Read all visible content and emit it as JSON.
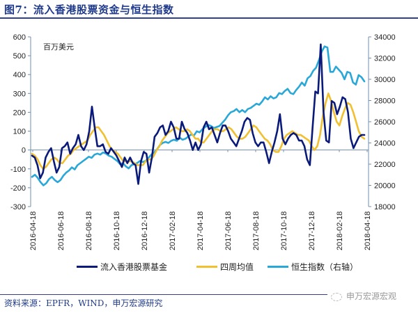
{
  "figure": {
    "title": "图7：流入香港股票资金与恒生指数",
    "source": "资料来源：EPFR，WIND，申万宏源研究",
    "watermark": "申万宏源宏观"
  },
  "chart_data": {
    "type": "line",
    "title": "图7：流入香港股票资金与恒生指数",
    "ylabel": "百万美元",
    "y_left": {
      "min": -300,
      "max": 600,
      "ticks": [
        -300,
        -200,
        -100,
        0,
        100,
        200,
        300,
        400,
        500,
        600
      ]
    },
    "y_right": {
      "min": 18000,
      "max": 34000,
      "ticks": [
        18000,
        20000,
        22000,
        24000,
        26000,
        28000,
        30000,
        32000,
        34000
      ]
    },
    "x_ticks": [
      "2016-04-18",
      "2016-06-18",
      "2016-08-18",
      "2016-10-18",
      "2016-12-18",
      "2017-02-18",
      "2017-04-18",
      "2017-06-18",
      "2017-08-18",
      "2017-10-18",
      "2017-12-18",
      "2018-02-18",
      "2018-04-18"
    ],
    "x_range": [
      "2016-04-11",
      "2018-04-18"
    ],
    "grid": false,
    "legend_position": "bottom",
    "colors": {
      "flow": "#0a1a7a",
      "ma4": "#f0c030",
      "hsi": "#29a8d8",
      "axis": "#6f8fb0"
    },
    "series": [
      {
        "name": "流入香港股票基金",
        "axis": "left",
        "values": [
          -30,
          -40,
          -80,
          -150,
          -120,
          -40,
          -10,
          10,
          -60,
          -120,
          -90,
          10,
          20,
          40,
          -20,
          10,
          30,
          80,
          20,
          0,
          30,
          100,
          230,
          120,
          20,
          20,
          30,
          -10,
          -20,
          10,
          -10,
          -30,
          -60,
          -90,
          -40,
          -70,
          -40,
          -70,
          -80,
          -180,
          -60,
          -10,
          -20,
          -120,
          -40,
          70,
          90,
          120,
          130,
          80,
          100,
          150,
          120,
          60,
          60,
          150,
          110,
          90,
          50,
          0,
          40,
          0,
          30,
          120,
          150,
          110,
          120,
          80,
          40,
          90,
          130,
          130,
          100,
          60,
          40,
          20,
          60,
          100,
          150,
          170,
          160,
          90,
          40,
          20,
          40,
          40,
          -10,
          -70,
          -10,
          40,
          100,
          190,
          60,
          30,
          60,
          80,
          90,
          80,
          50,
          50,
          20,
          -50,
          -80,
          120,
          310,
          300,
          560,
          200,
          50,
          40,
          260,
          250,
          190,
          230,
          280,
          270,
          200,
          60,
          10,
          40,
          70,
          80,
          80
        ]
      },
      {
        "name": "四周均值",
        "axis": "left",
        "values": [
          -20,
          -30,
          -50,
          -80,
          -100,
          -90,
          -70,
          -50,
          -40,
          -50,
          -70,
          -70,
          -50,
          -30,
          -20,
          0,
          10,
          20,
          30,
          40,
          50,
          80,
          100,
          120,
          120,
          100,
          80,
          50,
          20,
          0,
          -10,
          -20,
          -40,
          -60,
          -60,
          -60,
          -60,
          -70,
          -80,
          -80,
          -80,
          -60,
          -50,
          -50,
          -30,
          0,
          20,
          50,
          70,
          90,
          100,
          110,
          120,
          110,
          100,
          100,
          110,
          100,
          80,
          60,
          60,
          40,
          40,
          60,
          80,
          100,
          110,
          110,
          100,
          100,
          110,
          120,
          110,
          90,
          70,
          60,
          60,
          70,
          90,
          110,
          130,
          120,
          100,
          80,
          60,
          50,
          30,
          0,
          -10,
          -10,
          20,
          60,
          80,
          90,
          100,
          90,
          80,
          80,
          70,
          60,
          50,
          20,
          0,
          20,
          80,
          180,
          250,
          300,
          260,
          200,
          150,
          130,
          180,
          220,
          250,
          240,
          200,
          150,
          100,
          70,
          60
        ]
      },
      {
        "name": "恒生指数（右轴）",
        "axis": "right",
        "values": [
          20800,
          21000,
          20700,
          20300,
          20000,
          20200,
          20600,
          20800,
          20500,
          20300,
          20500,
          20900,
          21200,
          21400,
          21700,
          21500,
          21900,
          22100,
          22300,
          22500,
          22700,
          22600,
          22900,
          23000,
          22900,
          23100,
          23000,
          22800,
          22700,
          22500,
          22300,
          22000,
          22100,
          21800,
          21600,
          21900,
          22000,
          22100,
          22300,
          22200,
          22300,
          22600,
          22900,
          23100,
          23400,
          23800,
          24000,
          24100,
          24000,
          24200,
          24300,
          24200,
          24500,
          24300,
          24400,
          24600,
          24800,
          24700,
          25100,
          25000,
          25300,
          25500,
          25700,
          25600,
          25400,
          25500,
          25600,
          25900,
          26200,
          26600,
          26900,
          27000,
          27200,
          26900,
          27100,
          26900,
          27200,
          27300,
          27500,
          27700,
          27600,
          27900,
          28300,
          28100,
          28400,
          28200,
          28300,
          28700,
          28600,
          28900,
          29100,
          28700,
          28600,
          29000,
          29300,
          29700,
          29400,
          30100,
          30300,
          30800,
          31100,
          31800,
          32600,
          33100,
          33000,
          30700,
          30700,
          31200,
          30900,
          30600,
          30000,
          30700,
          30600,
          29700,
          29500,
          30400,
          30200,
          29800
        ]
      }
    ]
  },
  "axis_labels": {
    "left": [
      "600",
      "500",
      "400",
      "300",
      "200",
      "100",
      "0",
      "-100",
      "-200",
      "-300"
    ],
    "right": [
      "34000",
      "32000",
      "30000",
      "28000",
      "26000",
      "24000",
      "22000",
      "20000",
      "18000"
    ]
  }
}
